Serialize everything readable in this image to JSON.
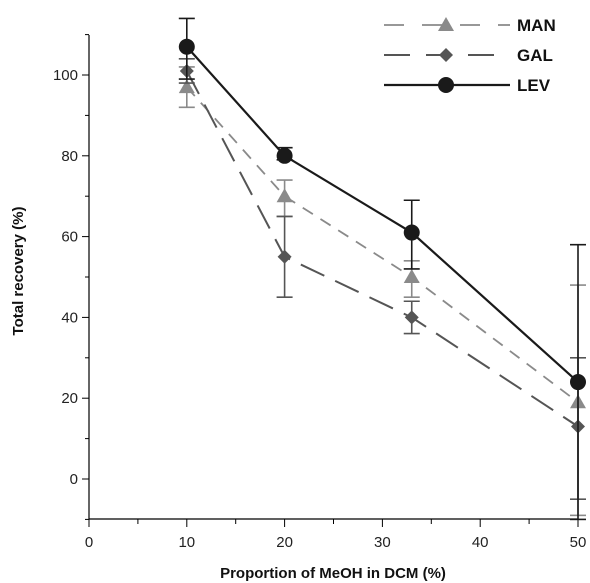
{
  "chart_data": {
    "type": "line",
    "title": "",
    "xlabel": "Proportion of MeOH in DCM (%)",
    "ylabel": "Total recovery (%)",
    "xlim": [
      0,
      50
    ],
    "ylim": [
      -10,
      110
    ],
    "x_ticks": [
      0,
      10,
      20,
      30,
      40,
      50
    ],
    "y_ticks": [
      0,
      20,
      40,
      60,
      80,
      100
    ],
    "grid": false,
    "legend_position": "top-right",
    "series": [
      {
        "name": "MAN",
        "color": "#8a8a8a",
        "line_style": "short-dashed",
        "marker": "triangle",
        "points": [
          {
            "x": 10,
            "y": 97,
            "err_low": 92,
            "err_high": 102
          },
          {
            "x": 20,
            "y": 70,
            "err_low": 65,
            "err_high": 74
          },
          {
            "x": 33,
            "y": 50,
            "err_low": 45,
            "err_high": 54
          },
          {
            "x": 50,
            "y": 19,
            "err_low": -9,
            "err_high": 48
          }
        ]
      },
      {
        "name": "GAL",
        "color": "#555555",
        "line_style": "long-dashed",
        "marker": "diamond",
        "points": [
          {
            "x": 10,
            "y": 101,
            "err_low": 98,
            "err_high": 104
          },
          {
            "x": 20,
            "y": 55,
            "err_low": 45,
            "err_high": 65
          },
          {
            "x": 33,
            "y": 40,
            "err_low": 36,
            "err_high": 44
          },
          {
            "x": 50,
            "y": 13,
            "err_low": -5,
            "err_high": 30
          }
        ]
      },
      {
        "name": "LEV",
        "color": "#1a1a1a",
        "line_style": "solid",
        "marker": "circle",
        "points": [
          {
            "x": 10,
            "y": 107,
            "err_low": 99,
            "err_high": 114
          },
          {
            "x": 20,
            "y": 80,
            "err_low": 79,
            "err_high": 82
          },
          {
            "x": 33,
            "y": 61,
            "err_low": 52,
            "err_high": 69
          },
          {
            "x": 50,
            "y": 24,
            "err_low": -10,
            "err_high": 58
          }
        ]
      }
    ]
  }
}
